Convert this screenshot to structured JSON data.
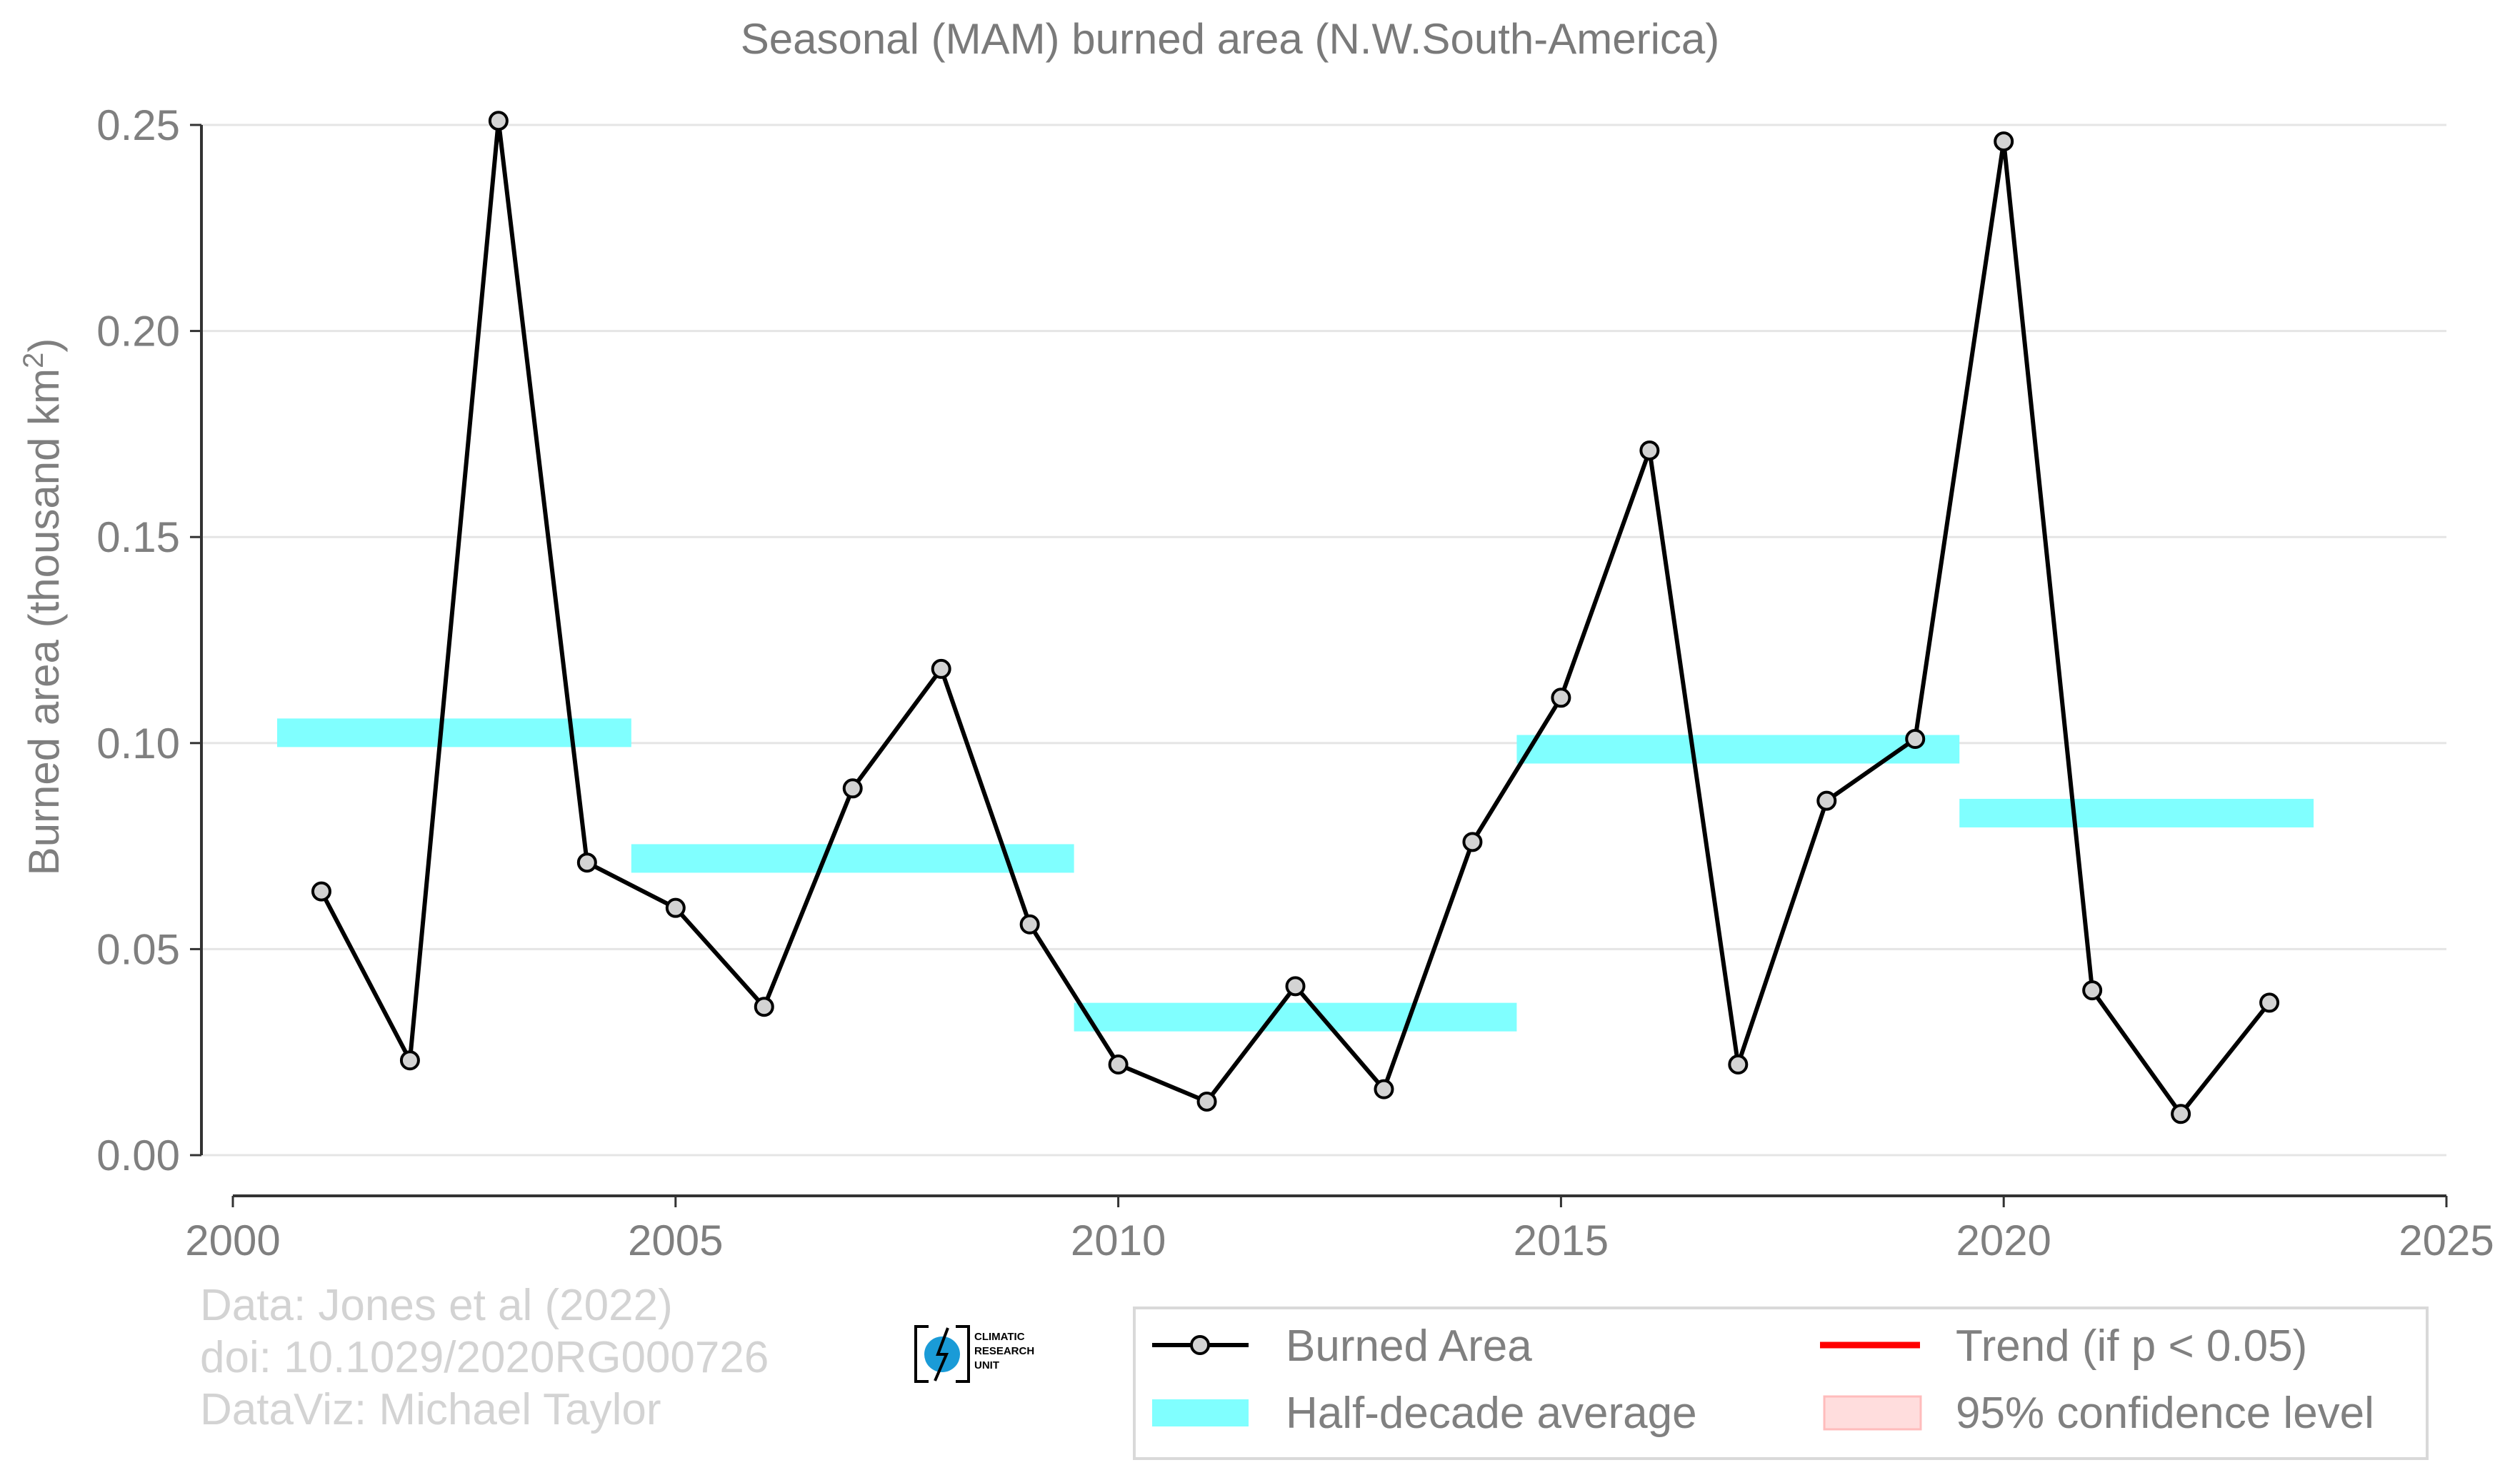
{
  "chart_data": {
    "type": "line",
    "title": "Seasonal (MAM) burned area (N.W.South-America)",
    "ylabel": "Burned area (thousand km",
    "ylabel_sup": "2",
    "ylabel_close": ")",
    "xlim": [
      2000,
      2025
    ],
    "ylim": [
      0,
      0.25
    ],
    "x_ticks": [
      2000,
      2005,
      2010,
      2015,
      2020,
      2025
    ],
    "y_ticks": [
      "0.00",
      "0.05",
      "0.10",
      "0.15",
      "0.20",
      "0.25"
    ],
    "grid": "horizontal",
    "series": [
      {
        "name": "Burned Area",
        "color": "#000000",
        "marker_fill": "#d3d3d3",
        "x": [
          2001,
          2002,
          2003,
          2004,
          2005,
          2006,
          2007,
          2008,
          2009,
          2010,
          2011,
          2012,
          2013,
          2014,
          2015,
          2016,
          2017,
          2018,
          2019,
          2020,
          2021,
          2022,
          2023
        ],
        "y": [
          0.064,
          0.023,
          0.251,
          0.071,
          0.06,
          0.036,
          0.089,
          0.118,
          0.056,
          0.022,
          0.013,
          0.041,
          0.016,
          0.076,
          0.111,
          0.171,
          0.022,
          0.086,
          0.101,
          0.246,
          0.04,
          0.01,
          0.037
        ]
      }
    ],
    "half_decade_average": {
      "name": "Half-decade average",
      "color": "#80ffff",
      "segments": [
        {
          "x0": 2000.5,
          "x1": 2004.5,
          "y": 0.1025
        },
        {
          "x0": 2004.5,
          "x1": 2009.5,
          "y": 0.072
        },
        {
          "x0": 2009.5,
          "x1": 2014.5,
          "y": 0.0335
        },
        {
          "x0": 2014.5,
          "x1": 2019.5,
          "y": 0.0985
        },
        {
          "x0": 2019.5,
          "x1": 2023.5,
          "y": 0.083
        }
      ]
    },
    "legend": {
      "placement": "bottom-right",
      "items": [
        {
          "label": "Burned Area",
          "symbol": "line-marker",
          "color": "#000000"
        },
        {
          "label": "Trend (if p < 0.05)",
          "symbol": "line",
          "color": "#ff0000"
        },
        {
          "label": "Half-decade average",
          "symbol": "band",
          "color": "#80ffff"
        },
        {
          "label": "95% confidence level",
          "symbol": "box",
          "color": "#ffdddd"
        }
      ]
    }
  },
  "credits": {
    "line1": "Data: Jones et al (2022)",
    "line2": "doi: 10.1029/2020RG000726",
    "line3": "DataViz: Michael Taylor"
  },
  "logo": {
    "line1": "CLIMATIC",
    "line2": "RESEARCH",
    "line3": "UNIT",
    "color": "#1a9bd7"
  }
}
